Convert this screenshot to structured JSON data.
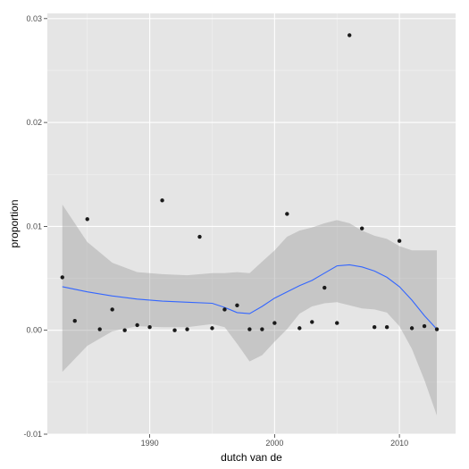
{
  "chart_data": {
    "type": "scatter",
    "title": "",
    "xlabel": "dutch van de",
    "ylabel": "proportion",
    "xlim": [
      1981.8,
      2014.5
    ],
    "ylim": [
      -0.01,
      0.0305
    ],
    "x_ticks": [
      1990,
      2000,
      2010
    ],
    "x_tick_labels": [
      "1990",
      "2000",
      "2010"
    ],
    "y_ticks": [
      -0.01,
      0.0,
      0.01,
      0.02,
      0.03
    ],
    "y_tick_labels": [
      "-0.01",
      "0.00",
      "0.01",
      "0.02",
      "0.03"
    ],
    "grid": true,
    "points": {
      "x": [
        1983,
        1984,
        1985,
        1986,
        1987,
        1988,
        1989,
        1990,
        1991,
        1992,
        1993,
        1994,
        1995,
        1996,
        1997,
        1998,
        1999,
        2000,
        2001,
        2002,
        2003,
        2004,
        2005,
        2006,
        2007,
        2008,
        2009,
        2010,
        2011,
        2012,
        2013
      ],
      "y": [
        0.0051,
        0.0009,
        0.0107,
        0.0001,
        0.002,
        0.0,
        0.0005,
        0.0003,
        0.0125,
        0.0,
        0.0001,
        0.009,
        0.0002,
        0.002,
        0.0024,
        0.0001,
        0.0001,
        0.0007,
        0.0112,
        0.0002,
        0.0008,
        0.0041,
        0.0007,
        0.0284,
        0.0098,
        0.0003,
        0.0003,
        0.0086,
        0.0002,
        0.0004,
        0.0001
      ]
    },
    "smooth": {
      "color": "#3366ff",
      "x": [
        1983,
        1985,
        1987,
        1989,
        1991,
        1993,
        1995,
        1996,
        1997,
        1998,
        1999,
        2000,
        2001,
        2002,
        2003,
        2004,
        2005,
        2006,
        2007,
        2008,
        2009,
        2010,
        2011,
        2012,
        2013
      ],
      "y": [
        0.0042,
        0.0037,
        0.0033,
        0.003,
        0.0028,
        0.0027,
        0.0026,
        0.0022,
        0.0017,
        0.0016,
        0.0023,
        0.0031,
        0.0037,
        0.0043,
        0.0048,
        0.0055,
        0.0062,
        0.0063,
        0.0061,
        0.0057,
        0.0051,
        0.0042,
        0.0029,
        0.0014,
        0.0001
      ],
      "lower": [
        -0.004,
        -0.0015,
        -0.0001,
        0.0004,
        0.0003,
        0.0003,
        0.0006,
        0.0003,
        -0.0013,
        -0.003,
        -0.0024,
        -0.0011,
        0.0001,
        0.0016,
        0.0023,
        0.0026,
        0.0027,
        0.0024,
        0.0021,
        0.002,
        0.0017,
        0.0004,
        -0.0018,
        -0.0048,
        -0.0082
      ],
      "upper": [
        0.0121,
        0.0085,
        0.0065,
        0.0056,
        0.0054,
        0.0053,
        0.0055,
        0.0055,
        0.0056,
        0.0055,
        0.0066,
        0.0077,
        0.009,
        0.0096,
        0.0099,
        0.0103,
        0.0106,
        0.0103,
        0.0096,
        0.0091,
        0.0088,
        0.0081,
        0.0077,
        0.0077,
        0.0077
      ]
    },
    "colors": {
      "panel": "#e5e5e5",
      "grid_major": "#ffffff",
      "grid_minor": "#f2f2f2",
      "point": "#1a1a1a",
      "ribbon": "#999999"
    }
  }
}
